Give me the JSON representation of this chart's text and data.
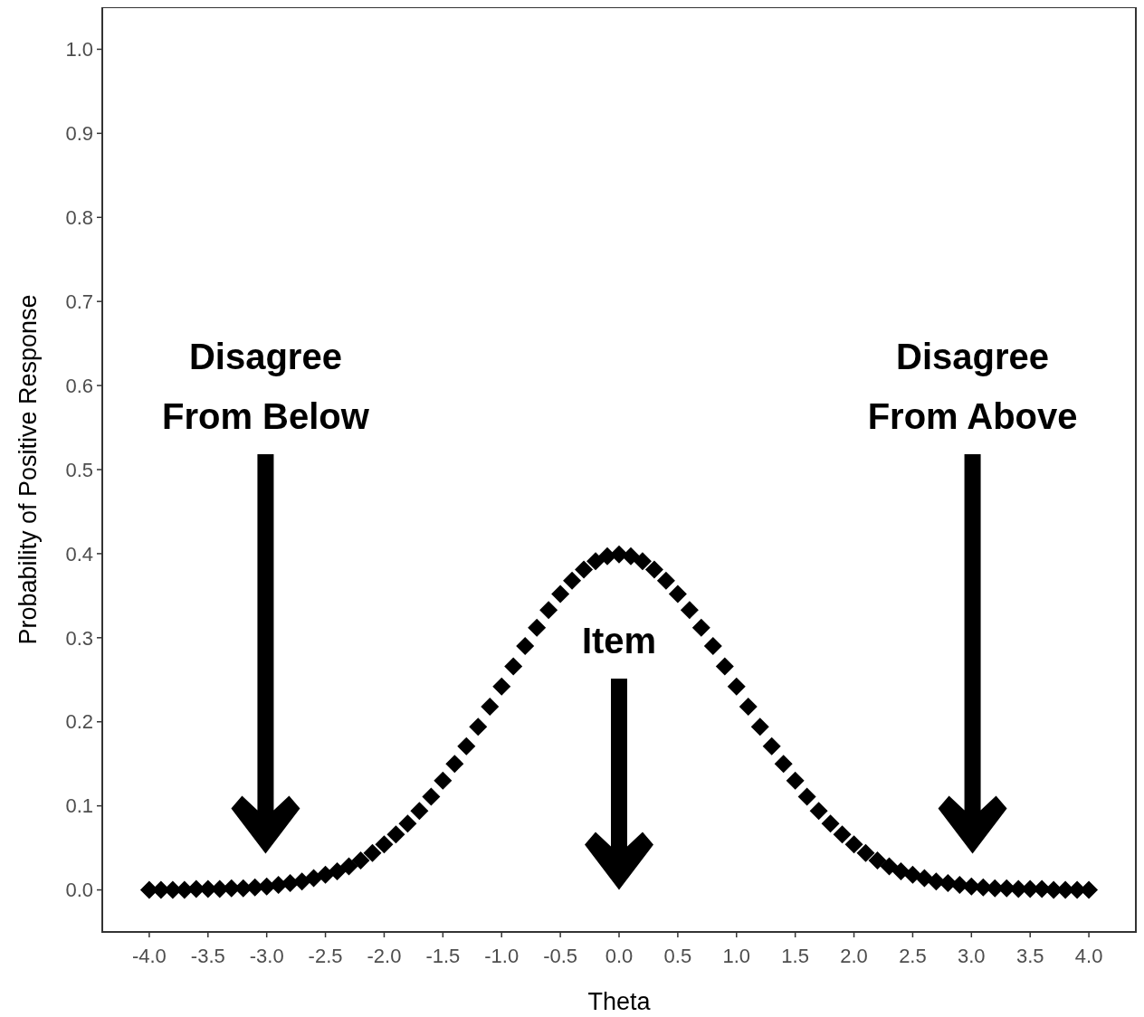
{
  "chart_data": {
    "type": "scatter",
    "xlabel": "Theta",
    "ylabel": "Probability of Positive Response",
    "xlim": [
      -4.4,
      4.4
    ],
    "ylim": [
      -0.05,
      1.05
    ],
    "xticks": [
      {
        "value": -4,
        "label": "-4.0"
      },
      {
        "value": -3.5,
        "label": "-3.5"
      },
      {
        "value": -3,
        "label": "-3.0"
      },
      {
        "value": -2.5,
        "label": "-2.5"
      },
      {
        "value": -2,
        "label": "-2.0"
      },
      {
        "value": -1.5,
        "label": "-1.5"
      },
      {
        "value": -1,
        "label": "-1.0"
      },
      {
        "value": -0.5,
        "label": "-0.5"
      },
      {
        "value": 0,
        "label": "0.0"
      },
      {
        "value": 0.5,
        "label": "0.5"
      },
      {
        "value": 1,
        "label": "1.0"
      },
      {
        "value": 1.5,
        "label": "1.5"
      },
      {
        "value": 2,
        "label": "2.0"
      },
      {
        "value": 2.5,
        "label": "2.5"
      },
      {
        "value": 3,
        "label": "3.0"
      },
      {
        "value": 3.5,
        "label": "3.5"
      },
      {
        "value": 4,
        "label": "4.0"
      }
    ],
    "yticks": [
      {
        "value": 0,
        "label": "0.0"
      },
      0.1,
      0.2,
      0.3,
      0.4,
      0.5,
      0.6,
      0.7,
      0.8,
      0.9,
      {
        "value": 1,
        "label": "1.0"
      }
    ],
    "grid": false,
    "marker": "diamond",
    "annotations": [
      "Disagree\nFrom Below",
      "Item",
      "Disagree\nFrom Above"
    ],
    "series": [
      {
        "color": "#000000",
        "x": [
          -4,
          -3.9,
          -3.8,
          -3.7,
          -3.6,
          -3.5,
          -3.4,
          -3.3,
          -3.2,
          -3.1,
          -3,
          -2.9,
          -2.8,
          -2.7,
          -2.6,
          -2.5,
          -2.4,
          -2.3,
          -2.2,
          -2.1,
          -2,
          -1.9,
          -1.8,
          -1.7,
          -1.6,
          -1.5,
          -1.4,
          -1.3,
          -1.2,
          -1.1,
          -1,
          -0.9,
          -0.8,
          -0.7,
          -0.6,
          -0.5,
          -0.4,
          -0.3,
          -0.2,
          -0.1,
          0,
          0.1,
          0.2,
          0.3,
          0.4,
          0.5,
          0.6,
          0.7,
          0.8,
          0.9,
          1,
          1.1,
          1.2,
          1.3,
          1.4,
          1.5,
          1.6,
          1.7,
          1.8,
          1.9,
          2,
          2.1,
          2.2,
          2.3,
          2.4,
          2.5,
          2.6,
          2.7,
          2.8,
          2.9,
          3,
          3.1,
          3.2,
          3.3,
          3.4,
          3.5,
          3.6,
          3.7,
          3.8,
          3.9,
          4
        ],
        "values": [
          0,
          0,
          0,
          0,
          0.001,
          0.001,
          0.001,
          0.002,
          0.002,
          0.003,
          0.004,
          0.006,
          0.008,
          0.01,
          0.014,
          0.018,
          0.022,
          0.028,
          0.035,
          0.044,
          0.054,
          0.066,
          0.079,
          0.094,
          0.111,
          0.13,
          0.15,
          0.171,
          0.194,
          0.218,
          0.242,
          0.266,
          0.29,
          0.312,
          0.333,
          0.352,
          0.368,
          0.381,
          0.391,
          0.397,
          0.399,
          0.397,
          0.391,
          0.381,
          0.368,
          0.352,
          0.333,
          0.312,
          0.29,
          0.266,
          0.242,
          0.218,
          0.194,
          0.171,
          0.15,
          0.13,
          0.111,
          0.094,
          0.079,
          0.066,
          0.054,
          0.044,
          0.035,
          0.028,
          0.022,
          0.018,
          0.014,
          0.01,
          0.008,
          0.006,
          0.004,
          0.003,
          0.002,
          0.002,
          0.001,
          0.001,
          0.001,
          0,
          0,
          0,
          0
        ]
      }
    ]
  }
}
